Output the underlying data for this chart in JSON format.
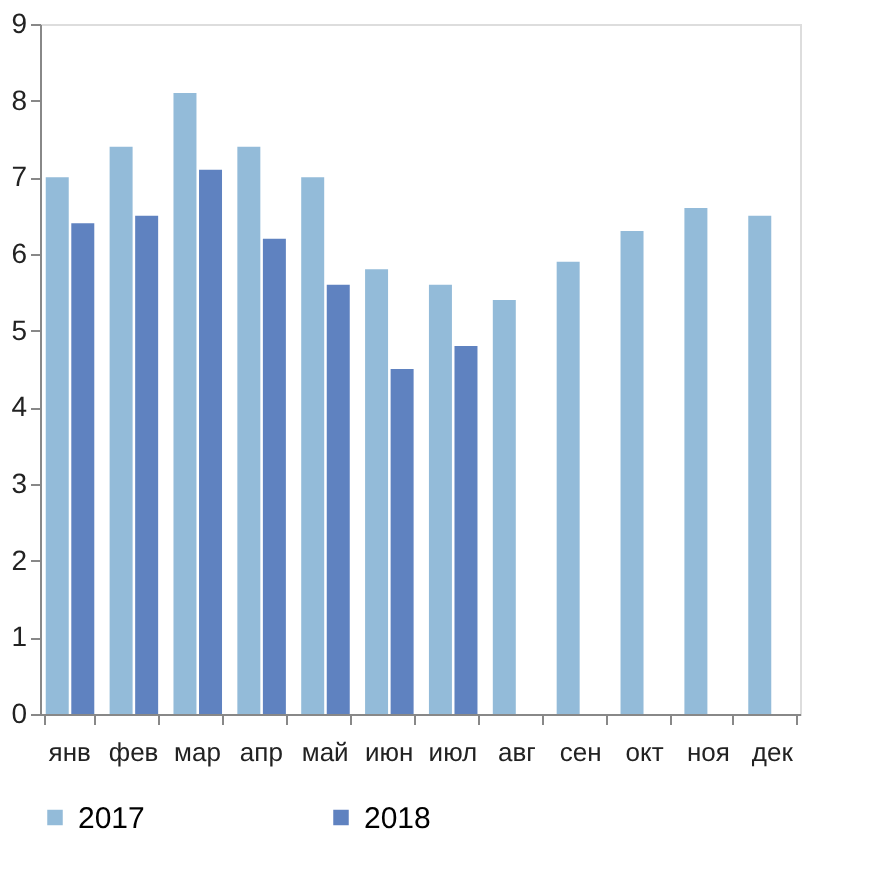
{
  "chart_data": {
    "type": "bar",
    "categories": [
      "янв",
      "фев",
      "мар",
      "апр",
      "май",
      "июн",
      "июл",
      "авг",
      "сен",
      "окт",
      "ноя",
      "дек"
    ],
    "series": [
      {
        "name": "2017",
        "color": "#93bbd9",
        "values": [
          7.0,
          7.4,
          8.1,
          7.4,
          7.0,
          5.8,
          5.6,
          5.4,
          5.9,
          6.3,
          6.6,
          6.5
        ]
      },
      {
        "name": "2018",
        "color": "#5f82c0",
        "values": [
          6.4,
          6.5,
          7.1,
          6.2,
          5.6,
          4.5,
          4.8,
          null,
          null,
          null,
          null,
          null
        ]
      }
    ],
    "ylim": [
      0,
      9
    ],
    "yticks": [
      0,
      1,
      2,
      3,
      4,
      5,
      6,
      7,
      8,
      9
    ],
    "grid": false,
    "legend": "bottom"
  }
}
